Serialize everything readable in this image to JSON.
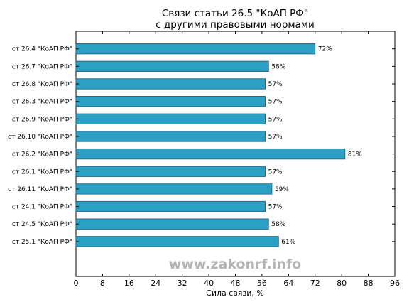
{
  "chart_data": {
    "type": "bar",
    "orientation": "horizontal",
    "title_line1": "Связи статьи 26.5 \"КоАП РФ\"",
    "title_line2": "с другими правовыми нормами",
    "xlabel": "Сила связи, %",
    "ylabel": "",
    "xlim": [
      0,
      96
    ],
    "xticks": [
      "0",
      "8",
      "16",
      "24",
      "32",
      "40",
      "48",
      "56",
      "64",
      "72",
      "80",
      "88",
      "96"
    ],
    "categories": [
      "ст 26.4 \"КоАП РФ\"",
      "ст 26.7 \"КоАП РФ\"",
      "ст 26.8 \"КоАП РФ\"",
      "ст 26.3 \"КоАП РФ\"",
      "ст 26.9 \"КоАП РФ\"",
      "ст 26.10 \"КоАП РФ\"",
      "ст 26.2 \"КоАП РФ\"",
      "ст 26.1 \"КоАП РФ\"",
      "ст 26.11 \"КоАП РФ\"",
      "ст 24.1 \"КоАП РФ\"",
      "ст 24.5 \"КоАП РФ\"",
      "ст 25.1 \"КоАП РФ\""
    ],
    "values": [
      72,
      58,
      57,
      57,
      57,
      57,
      81,
      57,
      59,
      57,
      58,
      61
    ],
    "value_labels": [
      "72%",
      "58%",
      "57%",
      "57%",
      "57%",
      "57%",
      "81%",
      "57%",
      "59%",
      "57%",
      "58%",
      "61%"
    ],
    "bar_color": "#2b9fc4",
    "bar_edge_color": "#1f5f7a",
    "grid": false,
    "legend": "none"
  },
  "watermark": "www.zakonrf.info"
}
